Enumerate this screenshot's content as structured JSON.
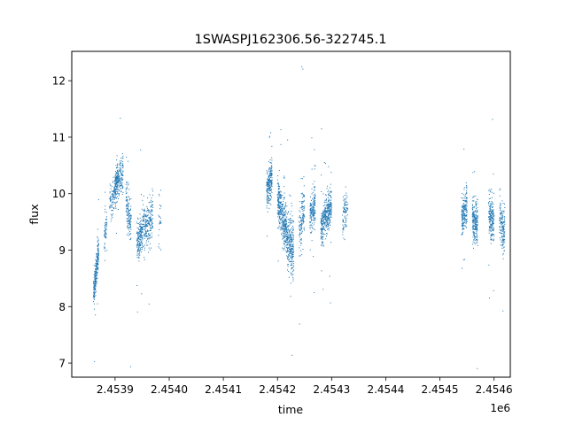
{
  "chart_data": {
    "type": "scatter",
    "title": "1SWASPJ162306.56-322745.1",
    "xlabel": "time",
    "ylabel": "flux",
    "x_offset_label": "1e6",
    "xlim": [
      2.45382,
      2.45463
    ],
    "ylim": [
      6.75,
      12.52
    ],
    "x_ticks": [
      2.4539,
      2.454,
      2.4541,
      2.4542,
      2.4543,
      2.4544,
      2.4545,
      2.4546
    ],
    "x_tick_labels": [
      "2.4539",
      "2.4540",
      "2.4541",
      "2.4542",
      "2.4543",
      "2.4544",
      "2.4545",
      "2.4546"
    ],
    "y_ticks": [
      7,
      8,
      9,
      10,
      11,
      12
    ],
    "y_tick_labels": [
      "7",
      "8",
      "9",
      "10",
      "11",
      "12"
    ],
    "grid": false,
    "marker_color": "#1f77b4",
    "series": [
      {
        "clusters": [
          {
            "x_start": 2.45386,
            "x_end": 2.45387,
            "y_start": 8.2,
            "y_end": 9.0,
            "scatter": 0.25,
            "count": 260
          },
          {
            "x_start": 2.45388,
            "x_end": 2.453885,
            "y_start": 9.2,
            "y_end": 9.5,
            "scatter": 0.25,
            "count": 60
          },
          {
            "x_start": 2.45389,
            "x_end": 2.453905,
            "y_start": 9.8,
            "y_end": 10.2,
            "scatter": 0.25,
            "count": 140
          },
          {
            "x_start": 2.4539,
            "x_end": 2.453915,
            "y_start": 10.2,
            "y_end": 10.3,
            "scatter": 0.3,
            "count": 220
          },
          {
            "x_start": 2.45392,
            "x_end": 2.45393,
            "y_start": 9.9,
            "y_end": 9.4,
            "scatter": 0.35,
            "count": 150
          },
          {
            "x_start": 2.45394,
            "x_end": 2.45395,
            "y_start": 9.1,
            "y_end": 9.3,
            "scatter": 0.3,
            "count": 170
          },
          {
            "x_start": 2.45395,
            "x_end": 2.45397,
            "y_start": 9.3,
            "y_end": 9.6,
            "scatter": 0.35,
            "count": 240
          },
          {
            "x_start": 2.45398,
            "x_end": 2.453985,
            "y_start": 9.6,
            "y_end": 9.6,
            "scatter": 0.5,
            "count": 25
          },
          {
            "x_start": 2.45418,
            "x_end": 2.45419,
            "y_start": 10.1,
            "y_end": 10.3,
            "scatter": 0.3,
            "count": 220
          },
          {
            "x_start": 2.4542,
            "x_end": 2.45421,
            "y_start": 9.9,
            "y_end": 9.6,
            "scatter": 0.35,
            "count": 220
          },
          {
            "x_start": 2.45421,
            "x_end": 2.45422,
            "y_start": 9.5,
            "y_end": 9.2,
            "scatter": 0.4,
            "count": 220
          },
          {
            "x_start": 2.45422,
            "x_end": 2.45423,
            "y_start": 9.2,
            "y_end": 9.0,
            "scatter": 0.45,
            "count": 220
          },
          {
            "x_start": 2.45424,
            "x_end": 2.45425,
            "y_start": 9.3,
            "y_end": 9.8,
            "scatter": 0.4,
            "count": 140
          },
          {
            "x_start": 2.45426,
            "x_end": 2.45427,
            "y_start": 9.6,
            "y_end": 9.8,
            "scatter": 0.3,
            "count": 180
          },
          {
            "x_start": 2.45428,
            "x_end": 2.45429,
            "y_start": 9.4,
            "y_end": 9.6,
            "scatter": 0.3,
            "count": 200
          },
          {
            "x_start": 2.45429,
            "x_end": 2.4543,
            "y_start": 9.6,
            "y_end": 9.8,
            "scatter": 0.3,
            "count": 200
          },
          {
            "x_start": 2.45432,
            "x_end": 2.45433,
            "y_start": 9.5,
            "y_end": 9.8,
            "scatter": 0.3,
            "count": 90
          },
          {
            "x_start": 2.45454,
            "x_end": 2.45455,
            "y_start": 9.6,
            "y_end": 9.8,
            "scatter": 0.3,
            "count": 200
          },
          {
            "x_start": 2.45456,
            "x_end": 2.45457,
            "y_start": 9.6,
            "y_end": 9.4,
            "scatter": 0.35,
            "count": 220
          },
          {
            "x_start": 2.45459,
            "x_end": 2.4546,
            "y_start": 9.6,
            "y_end": 9.5,
            "scatter": 0.35,
            "count": 200
          },
          {
            "x_start": 2.45461,
            "x_end": 2.45462,
            "y_start": 9.5,
            "y_end": 9.3,
            "scatter": 0.35,
            "count": 160
          }
        ]
      }
    ]
  }
}
